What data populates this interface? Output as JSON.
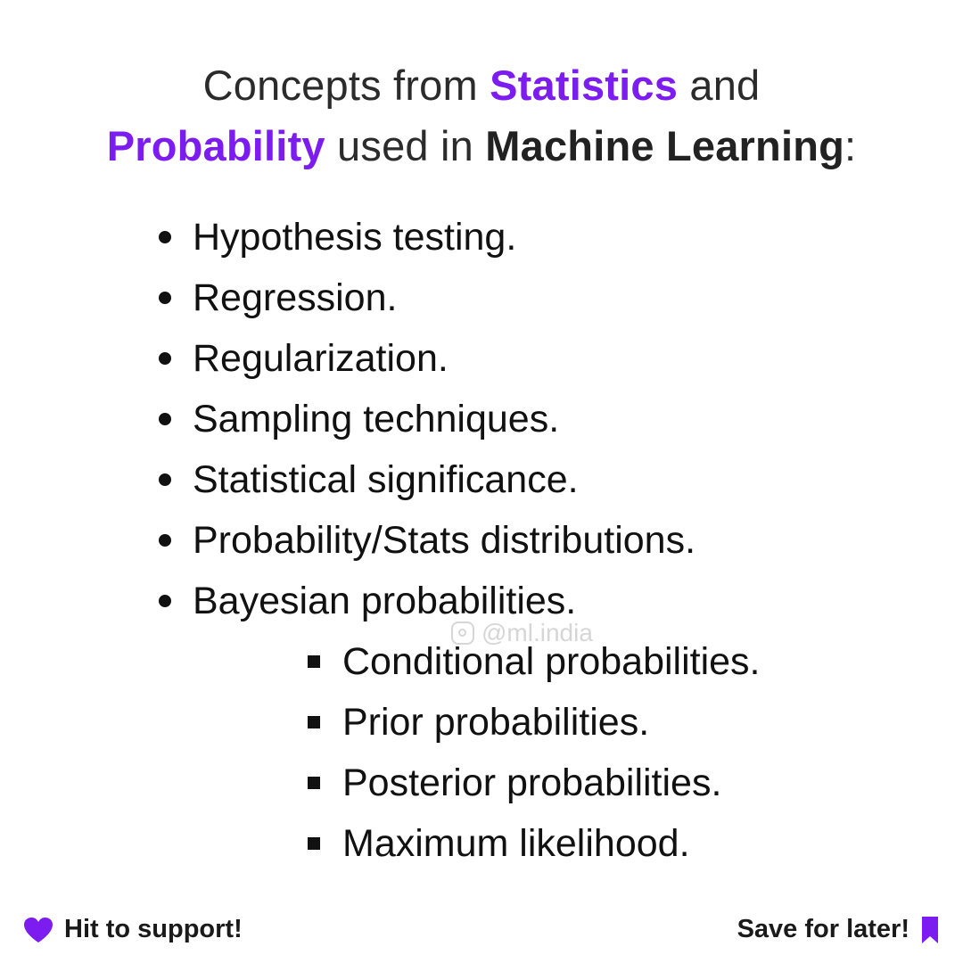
{
  "title": {
    "part1": "Concepts from ",
    "highlight1": "Statistics",
    "part2": " and",
    "highlight2": "Probability",
    "part3": " used in ",
    "highlight3": "Machine Learning",
    "part4": ":"
  },
  "items": [
    "Hypothesis testing.",
    "Regression.",
    "Regularization.",
    "Sampling techniques.",
    "Statistical significance.",
    "Probability/Stats distributions.",
    "Bayesian probabilities."
  ],
  "sub_items": [
    "Conditional probabilities.",
    "Prior probabilities.",
    "Posterior probabilities.",
    "Maximum likelihood."
  ],
  "watermark": "@ml.india",
  "footer": {
    "support_text": "Hit to support!",
    "save_text": "Save for later!"
  },
  "colors": {
    "accent": "#7d1cf0",
    "text": "#111111"
  }
}
